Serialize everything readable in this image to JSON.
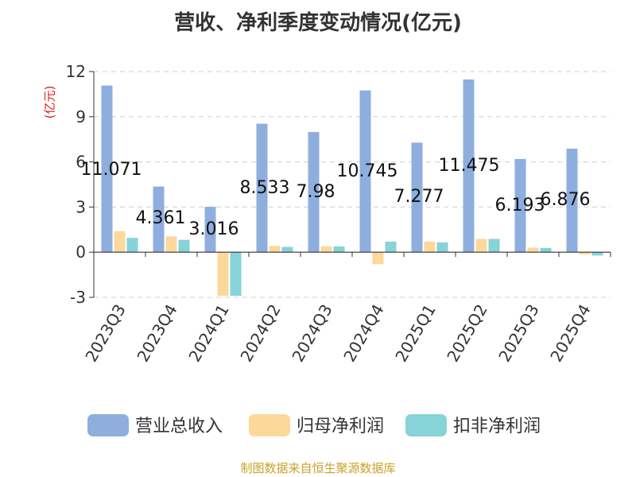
{
  "title": "营收、净利季度变动情况(亿元)",
  "unit": "(亿元)",
  "source": "制图数据来自恒生聚源数据库",
  "chart_data": {
    "type": "bar",
    "categories": [
      "2023Q3",
      "2023Q4",
      "2024Q1",
      "2024Q2",
      "2024Q3",
      "2024Q4",
      "2025Q1",
      "2025Q2",
      "2025Q3",
      "2025Q4"
    ],
    "series": [
      {
        "name": "营业总收入",
        "color": "#8eaede",
        "values": [
          11.071,
          4.361,
          3.016,
          8.533,
          7.98,
          10.745,
          7.277,
          11.475,
          6.193,
          6.876
        ],
        "labels": [
          "11.071",
          "4.361",
          "3.016",
          "8.533",
          "7.98",
          "10.745",
          "7.277",
          "11.475",
          "6.193",
          "6.876"
        ]
      },
      {
        "name": "归母净利润",
        "color": "#fdd89b",
        "values": [
          1.4,
          1.05,
          -2.9,
          0.42,
          0.4,
          -0.8,
          0.7,
          0.88,
          0.3,
          -0.15
        ]
      },
      {
        "name": "扣非净利润",
        "color": "#86d3d8",
        "values": [
          0.95,
          0.82,
          -2.9,
          0.35,
          0.38,
          0.7,
          0.65,
          0.88,
          0.28,
          -0.22
        ]
      }
    ],
    "yticks": [
      "12",
      "9",
      "6",
      "3",
      "0",
      "-3"
    ],
    "ylim": [
      -3,
      12
    ],
    "grid": true,
    "legend_position": "bottom"
  }
}
